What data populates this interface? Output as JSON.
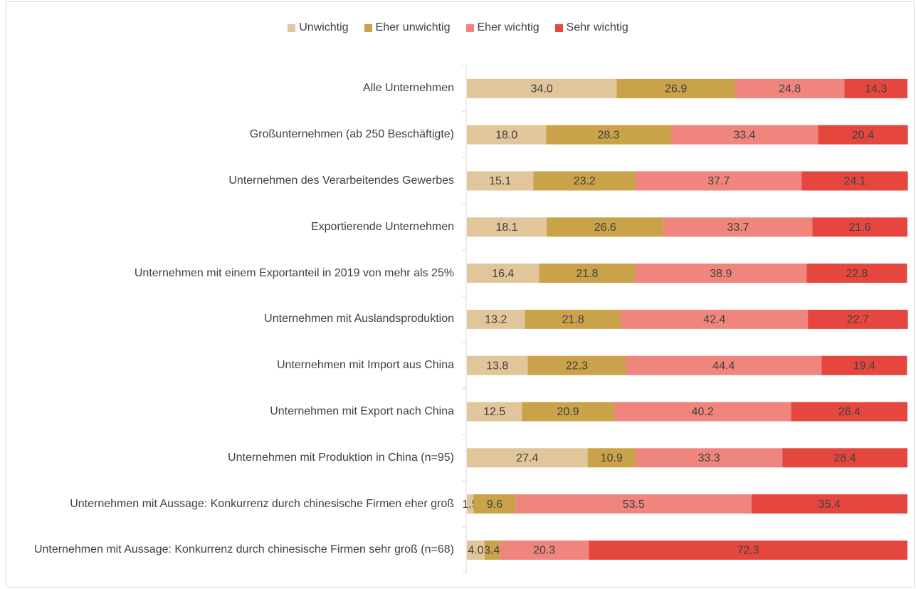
{
  "chart_data": {
    "type": "stacked_bar_horizontal",
    "categories": [
      "Alle Unternehmen",
      "Großunternehmen (ab 250 Beschäftigte)",
      "Unternehmen des Verarbeitendes Gewerbes",
      "Exportierende Unternehmen",
      "Unternehmen mit einem Exportanteil in 2019 von mehr als 25%",
      "Unternehmen mit Auslandsproduktion",
      "Unternehmen mit Import aus China",
      "Unternehmen mit Export nach China",
      "Unternehmen mit Produktion in China (n=95)",
      "Unternehmen mit Aussage: Konkurrenz durch chinesische Firmen eher groß",
      "Unternehmen mit Aussage: Konkurrenz durch chinesische Firmen sehr groß (n=68)"
    ],
    "xlim": [
      0,
      100
    ],
    "legend": "top",
    "series": [
      {
        "name": "Unwichtig",
        "color": "#e2c69b",
        "values": [
          34.0,
          18.0,
          15.1,
          18.1,
          16.4,
          13.2,
          13.8,
          12.5,
          27.4,
          1.5,
          4.0
        ],
        "value_labels": [
          "34.0",
          "18.0",
          "15.1",
          "18.1",
          "16.4",
          "13.2",
          "13.8",
          "12.5",
          "27.4",
          "1.5",
          "4.0"
        ]
      },
      {
        "name": "Eher unwichtig",
        "color": "#c9a24a",
        "values": [
          26.9,
          28.3,
          23.2,
          26.6,
          21.8,
          21.8,
          22.3,
          20.9,
          10.9,
          9.6,
          3.4
        ],
        "value_labels": [
          "26.9",
          "28.3",
          "23.2",
          "26.6",
          "21.8",
          "21.8",
          "22.3",
          "20.9",
          "10.9",
          "9.6",
          "3.4"
        ]
      },
      {
        "name": "Eher wichtig",
        "color": "#ef857c",
        "values": [
          24.8,
          33.4,
          37.7,
          33.7,
          38.9,
          42.4,
          44.4,
          40.2,
          33.3,
          53.5,
          20.3
        ],
        "value_labels": [
          "24.8",
          "33.4",
          "37.7",
          "33.7",
          "38.9",
          "42.4",
          "44.4",
          "40.2",
          "33.3",
          "53.5",
          "20.3"
        ]
      },
      {
        "name": "Sehr wichtig",
        "color": "#e5473f",
        "values": [
          14.3,
          20.4,
          24.1,
          21.6,
          22.8,
          22.7,
          19.4,
          26.4,
          28.4,
          35.4,
          72.3
        ],
        "value_labels": [
          "14.3",
          "20.4",
          "24.1",
          "21.6",
          "22.8",
          "22.7",
          "19.4",
          "26.4",
          "28.4",
          "35.4",
          "72.3"
        ]
      }
    ]
  }
}
